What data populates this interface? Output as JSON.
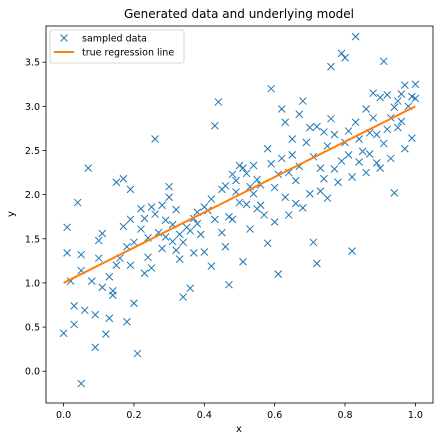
{
  "chart_data": {
    "type": "scatter",
    "title": "Generated data and underlying model",
    "xlabel": "x",
    "ylabel": "y",
    "xlim": [
      -0.05,
      1.05
    ],
    "ylim": [
      -0.36,
      3.91
    ],
    "xticks": [
      "0.0",
      "0.2",
      "0.4",
      "0.6",
      "0.8",
      "1.0"
    ],
    "yticks": [
      "0.0",
      "0.5",
      "1.0",
      "1.5",
      "2.0",
      "2.5",
      "3.0",
      "3.5"
    ],
    "xtick_values": [
      0,
      0.2,
      0.4,
      0.6,
      0.8,
      1.0
    ],
    "ytick_values": [
      0,
      0.5,
      1.0,
      1.5,
      2.0,
      2.5,
      3.0,
      3.5
    ],
    "grid": false,
    "legend_position": "top-left",
    "colors": {
      "scatter": "#1f77b4",
      "line": "#ff7f0e"
    },
    "series": [
      {
        "name": "sampled data",
        "kind": "scatter",
        "marker": "x",
        "points": [
          [
            0.0,
            0.43
          ],
          [
            0.01,
            1.34
          ],
          [
            0.01,
            1.63
          ],
          [
            0.02,
            1.02
          ],
          [
            0.03,
            0.53
          ],
          [
            0.03,
            0.74
          ],
          [
            0.04,
            1.91
          ],
          [
            0.05,
            -0.14
          ],
          [
            0.05,
            1.14
          ],
          [
            0.05,
            1.32
          ],
          [
            0.06,
            0.69
          ],
          [
            0.07,
            2.3
          ],
          [
            0.08,
            1.02
          ],
          [
            0.09,
            0.27
          ],
          [
            0.09,
            0.64
          ],
          [
            0.1,
            1.28
          ],
          [
            0.1,
            1.48
          ],
          [
            0.11,
            0.95
          ],
          [
            0.11,
            1.56
          ],
          [
            0.12,
            0.42
          ],
          [
            0.13,
            0.6
          ],
          [
            0.13,
            1.07
          ],
          [
            0.14,
            0.86
          ],
          [
            0.14,
            0.91
          ],
          [
            0.15,
            1.2
          ],
          [
            0.15,
            2.14
          ],
          [
            0.16,
            1.28
          ],
          [
            0.17,
            1.64
          ],
          [
            0.17,
            2.18
          ],
          [
            0.18,
            0.56
          ],
          [
            0.18,
            1.41
          ],
          [
            0.19,
            1.2
          ],
          [
            0.19,
            1.72
          ],
          [
            0.19,
            2.06
          ],
          [
            0.2,
            0.77
          ],
          [
            0.2,
            1.46
          ],
          [
            0.21,
            0.2
          ],
          [
            0.22,
            1.61
          ],
          [
            0.22,
            1.84
          ],
          [
            0.23,
            1.11
          ],
          [
            0.23,
            1.73
          ],
          [
            0.24,
            1.29
          ],
          [
            0.24,
            1.51
          ],
          [
            0.25,
            1.17
          ],
          [
            0.25,
            1.86
          ],
          [
            0.26,
            1.78
          ],
          [
            0.26,
            2.63
          ],
          [
            0.27,
            1.57
          ],
          [
            0.28,
            1.39
          ],
          [
            0.28,
            1.88
          ],
          [
            0.29,
            1.52
          ],
          [
            0.29,
            1.71
          ],
          [
            0.3,
            2.09
          ],
          [
            0.3,
            1.97
          ],
          [
            0.31,
            1.47
          ],
          [
            0.31,
            1.66
          ],
          [
            0.32,
            1.37
          ],
          [
            0.32,
            1.83
          ],
          [
            0.33,
            1.27
          ],
          [
            0.33,
            1.55
          ],
          [
            0.34,
            0.84
          ],
          [
            0.34,
            1.46
          ],
          [
            0.35,
            1.63
          ],
          [
            0.36,
            0.94
          ],
          [
            0.36,
            1.59
          ],
          [
            0.37,
            1.34
          ],
          [
            0.37,
            1.73
          ],
          [
            0.38,
            1.8
          ],
          [
            0.38,
            1.67
          ],
          [
            0.39,
            1.55
          ],
          [
            0.4,
            1.35
          ],
          [
            0.4,
            1.86
          ],
          [
            0.41,
            1.82
          ],
          [
            0.42,
            1.19
          ],
          [
            0.42,
            1.95
          ],
          [
            0.43,
            2.78
          ],
          [
            0.43,
            1.72
          ],
          [
            0.44,
            3.05
          ],
          [
            0.45,
            2.06
          ],
          [
            0.45,
            1.57
          ],
          [
            0.46,
            2.1
          ],
          [
            0.46,
            1.41
          ],
          [
            0.47,
            0.98
          ],
          [
            0.47,
            1.75
          ],
          [
            0.48,
            2.23
          ],
          [
            0.48,
            1.72
          ],
          [
            0.49,
            2.03
          ],
          [
            0.49,
            2.16
          ],
          [
            0.5,
            2.33
          ],
          [
            0.5,
            1.91
          ],
          [
            0.51,
            1.24
          ],
          [
            0.51,
            2.3
          ],
          [
            0.52,
            2.24
          ],
          [
            0.52,
            1.89
          ],
          [
            0.53,
            1.61
          ],
          [
            0.53,
            2.09
          ],
          [
            0.54,
            2.01
          ],
          [
            0.54,
            2.33
          ],
          [
            0.55,
            1.84
          ],
          [
            0.55,
            2.17
          ],
          [
            0.56,
            2.11
          ],
          [
            0.56,
            1.88
          ],
          [
            0.57,
            1.77
          ],
          [
            0.58,
            1.45
          ],
          [
            0.58,
            2.52
          ],
          [
            0.59,
            3.2
          ],
          [
            0.59,
            2.35
          ],
          [
            0.6,
            2.08
          ],
          [
            0.6,
            1.69
          ],
          [
            0.61,
            1.1
          ],
          [
            0.61,
            2.23
          ],
          [
            0.62,
            2.97
          ],
          [
            0.62,
            2.41
          ],
          [
            0.63,
            2.82
          ],
          [
            0.63,
            1.97
          ],
          [
            0.64,
            2.25
          ],
          [
            0.64,
            1.77
          ],
          [
            0.65,
            2.45
          ],
          [
            0.65,
            2.63
          ],
          [
            0.66,
            1.9
          ],
          [
            0.66,
            2.16
          ],
          [
            0.67,
            2.91
          ],
          [
            0.67,
            2.32
          ],
          [
            0.68,
            3.06
          ],
          [
            0.68,
            1.85
          ],
          [
            0.69,
            2.59
          ],
          [
            0.7,
            2.76
          ],
          [
            0.7,
            2.01
          ],
          [
            0.71,
            1.46
          ],
          [
            0.71,
            2.43
          ],
          [
            0.72,
            1.22
          ],
          [
            0.72,
            2.77
          ],
          [
            0.73,
            2.3
          ],
          [
            0.73,
            2.04
          ],
          [
            0.74,
            2.18
          ],
          [
            0.74,
            2.71
          ],
          [
            0.75,
            1.96
          ],
          [
            0.75,
            2.55
          ],
          [
            0.76,
            3.45
          ],
          [
            0.76,
            2.86
          ],
          [
            0.77,
            2.29
          ],
          [
            0.77,
            2.68
          ],
          [
            0.78,
            2.14
          ],
          [
            0.79,
            2.38
          ],
          [
            0.79,
            3.6
          ],
          [
            0.8,
            3.55
          ],
          [
            0.8,
            2.59
          ],
          [
            0.81,
            2.72
          ],
          [
            0.81,
            2.45
          ],
          [
            0.82,
            1.36
          ],
          [
            0.82,
            2.2
          ],
          [
            0.83,
            2.82
          ],
          [
            0.83,
            3.79
          ],
          [
            0.84,
            2.37
          ],
          [
            0.84,
            2.63
          ],
          [
            0.85,
            2.49
          ],
          [
            0.86,
            2.97
          ],
          [
            0.86,
            2.25
          ],
          [
            0.87,
            2.7
          ],
          [
            0.87,
            2.46
          ],
          [
            0.88,
            3.15
          ],
          [
            0.88,
            2.87
          ],
          [
            0.89,
            2.36
          ],
          [
            0.89,
            2.68
          ],
          [
            0.9,
            3.1
          ],
          [
            0.9,
            2.3
          ],
          [
            0.91,
            3.51
          ],
          [
            0.91,
            2.58
          ],
          [
            0.92,
            2.74
          ],
          [
            0.92,
            3.13
          ],
          [
            0.93,
            2.87
          ],
          [
            0.93,
            2.41
          ],
          [
            0.94,
            2.02
          ],
          [
            0.94,
            2.99
          ],
          [
            0.95,
            3.06
          ],
          [
            0.95,
            2.76
          ],
          [
            0.96,
            3.14
          ],
          [
            0.96,
            2.83
          ],
          [
            0.97,
            3.24
          ],
          [
            0.97,
            2.52
          ],
          [
            0.98,
            3.0
          ],
          [
            0.99,
            3.11
          ],
          [
            0.99,
            2.64
          ],
          [
            1.0,
            3.09
          ],
          [
            1.0,
            3.25
          ]
        ]
      },
      {
        "name": "true regression line",
        "kind": "line",
        "points": [
          [
            0,
            1.0
          ],
          [
            1,
            3.0
          ]
        ]
      }
    ]
  }
}
